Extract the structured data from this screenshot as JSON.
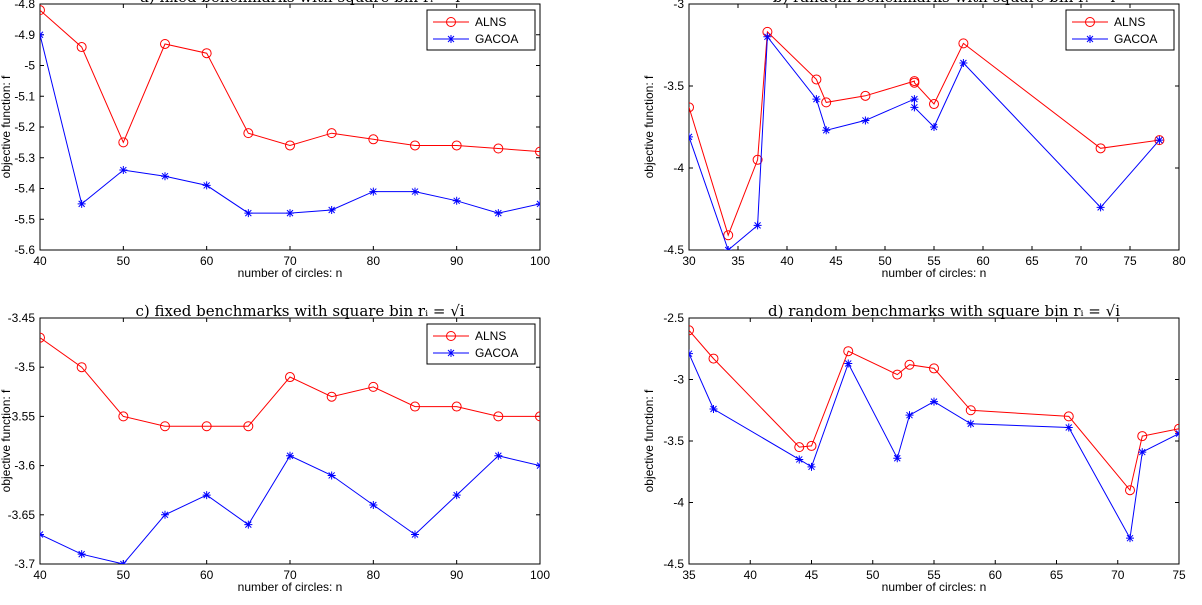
{
  "chart_data": [
    {
      "type": "line",
      "title": "a) fixed benchmarks with square bin rᵢ = i",
      "xlabel": "number of circles: n",
      "ylabel": "objective function: f",
      "xlim": [
        40,
        100
      ],
      "ylim": [
        -5.6,
        -4.8
      ],
      "xticks": [
        40,
        50,
        60,
        70,
        80,
        90,
        100
      ],
      "yticks": [
        -5.6,
        -5.5,
        -5.4,
        -5.3,
        -5.2,
        -5.1,
        -5,
        -4.9,
        -4.8
      ],
      "legend_position": "top-right",
      "series": [
        {
          "name": "ALNS",
          "color": "#ff0000",
          "marker": "circle",
          "x": [
            40,
            45,
            50,
            55,
            60,
            65,
            70,
            75,
            80,
            85,
            90,
            95,
            100
          ],
          "y": [
            -4.82,
            -4.94,
            -5.25,
            -4.93,
            -4.96,
            -5.22,
            -5.26,
            -5.22,
            -5.24,
            -5.26,
            -5.26,
            -5.27,
            -5.28
          ]
        },
        {
          "name": "GACOA",
          "color": "#0000ff",
          "marker": "star",
          "x": [
            40,
            45,
            50,
            55,
            60,
            65,
            70,
            75,
            80,
            85,
            90,
            95,
            100
          ],
          "y": [
            -4.9,
            -5.45,
            -5.34,
            -5.36,
            -5.39,
            -5.48,
            -5.48,
            -5.47,
            -5.41,
            -5.41,
            -5.44,
            -5.48,
            -5.45
          ]
        }
      ]
    },
    {
      "type": "line",
      "title": "b) random benchmarks with square bin rᵢ = i",
      "xlabel": "number of circles: n",
      "ylabel": "objective function: f",
      "xlim": [
        30,
        80
      ],
      "ylim": [
        -4.5,
        -3
      ],
      "xticks": [
        30,
        35,
        40,
        45,
        50,
        55,
        60,
        65,
        70,
        75,
        80
      ],
      "yticks": [
        -4.5,
        -4,
        -3.5,
        -3
      ],
      "legend_position": "top-right",
      "series": [
        {
          "name": "ALNS",
          "color": "#ff0000",
          "marker": "circle",
          "x": [
            30,
            34,
            37,
            38,
            43,
            44,
            48,
            53,
            53,
            55,
            58,
            72,
            78
          ],
          "y": [
            -3.63,
            -4.41,
            -3.95,
            -3.17,
            -3.46,
            -3.6,
            -3.56,
            -3.47,
            -3.48,
            -3.61,
            -3.24,
            -3.88,
            -3.83
          ]
        },
        {
          "name": "GACOA",
          "color": "#0000ff",
          "marker": "star",
          "x": [
            30,
            34,
            37,
            38,
            43,
            44,
            48,
            53,
            53,
            55,
            58,
            72,
            78
          ],
          "y": [
            -3.81,
            -4.5,
            -4.35,
            -3.2,
            -3.58,
            -3.77,
            -3.71,
            -3.58,
            -3.63,
            -3.75,
            -3.36,
            -4.24,
            -3.83
          ]
        }
      ]
    },
    {
      "type": "line",
      "title": "c) fixed benchmarks with square bin rᵢ = √i",
      "xlabel": "number of circles: n",
      "ylabel": "objective function: f",
      "xlim": [
        40,
        100
      ],
      "ylim": [
        -3.7,
        -3.45
      ],
      "xticks": [
        40,
        50,
        60,
        70,
        80,
        90,
        100
      ],
      "yticks": [
        -3.7,
        -3.65,
        -3.6,
        -3.55,
        -3.5,
        -3.45
      ],
      "legend_position": "top-right",
      "series": [
        {
          "name": "ALNS",
          "color": "#ff0000",
          "marker": "circle",
          "x": [
            40,
            45,
            50,
            55,
            60,
            65,
            70,
            75,
            80,
            85,
            90,
            95,
            100
          ],
          "y": [
            -3.47,
            -3.5,
            -3.55,
            -3.56,
            -3.56,
            -3.56,
            -3.51,
            -3.53,
            -3.52,
            -3.54,
            -3.54,
            -3.55,
            -3.55
          ]
        },
        {
          "name": "GACOA",
          "color": "#0000ff",
          "marker": "star",
          "x": [
            40,
            45,
            50,
            55,
            60,
            65,
            70,
            75,
            80,
            85,
            90,
            95,
            100
          ],
          "y": [
            -3.67,
            -3.69,
            -3.7,
            -3.65,
            -3.63,
            -3.66,
            -3.59,
            -3.61,
            -3.64,
            -3.67,
            -3.63,
            -3.59,
            -3.6
          ]
        }
      ]
    },
    {
      "type": "line",
      "title": "d) random benchmarks with square bin rᵢ = √i",
      "xlabel": "number of circles: n",
      "ylabel": "objective function: f",
      "xlim": [
        35,
        75
      ],
      "ylim": [
        -4.5,
        -2.5
      ],
      "xticks": [
        35,
        40,
        45,
        50,
        55,
        60,
        65,
        70,
        75
      ],
      "yticks": [
        -4.5,
        -4,
        -3.5,
        -3,
        -2.5
      ],
      "legend_position": "none",
      "series": [
        {
          "name": "",
          "color": "#ff0000",
          "marker": "circle",
          "x": [
            35,
            37,
            44,
            45,
            48,
            52,
            53,
            55,
            58,
            66,
            71,
            72,
            75
          ],
          "y": [
            -2.6,
            -2.83,
            -3.55,
            -3.54,
            -2.77,
            -2.96,
            -2.88,
            -2.91,
            -3.25,
            -3.3,
            -3.9,
            -3.46,
            -3.4
          ]
        },
        {
          "name": "",
          "color": "#0000ff",
          "marker": "star",
          "x": [
            35,
            37,
            44,
            45,
            48,
            52,
            53,
            55,
            58,
            66,
            71,
            72,
            75
          ],
          "y": [
            -2.79,
            -3.24,
            -3.65,
            -3.71,
            -2.87,
            -3.64,
            -3.29,
            -3.18,
            -3.36,
            -3.39,
            -4.29,
            -3.59,
            -3.44
          ]
        }
      ]
    }
  ]
}
